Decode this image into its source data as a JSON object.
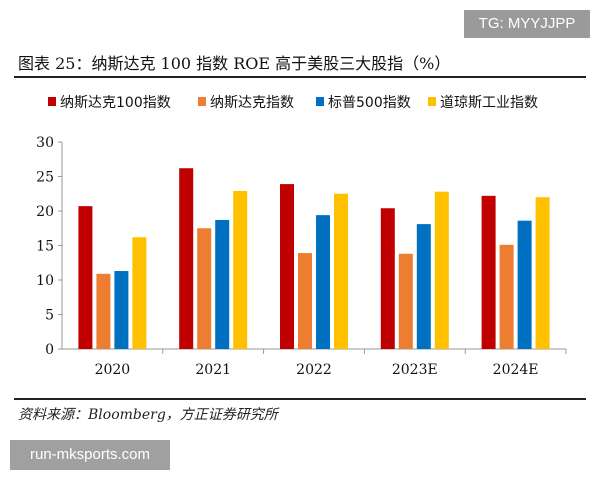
{
  "watermark_top": "TG: MYYJJPP",
  "watermark_bottom": "run-mksports.com",
  "source": "资料来源：Bloomberg，方正证券研究所",
  "chart_data": {
    "type": "bar",
    "title": "图表 25：纳斯达克 100 指数 ROE 高于美股三大股指（%）",
    "categories": [
      "2020",
      "2021",
      "2022",
      "2023E",
      "2024E"
    ],
    "series": [
      {
        "name": "纳斯达克100指数",
        "color": "#C00000",
        "values": [
          20.7,
          26.2,
          23.9,
          20.4,
          22.2
        ]
      },
      {
        "name": "纳斯达克指数",
        "color": "#ED7D31",
        "values": [
          10.9,
          17.5,
          13.9,
          13.8,
          15.1
        ]
      },
      {
        "name": "标普500指数",
        "color": "#0070C0",
        "values": [
          11.3,
          18.7,
          19.4,
          18.1,
          18.6
        ]
      },
      {
        "name": "道琼斯工业指数",
        "color": "#FFC000",
        "values": [
          16.2,
          22.9,
          22.5,
          22.8,
          22.0
        ]
      }
    ],
    "ylim": [
      0,
      30
    ],
    "yticks": [
      0,
      5,
      10,
      15,
      20,
      25,
      30
    ],
    "legend": "top",
    "grid": false
  }
}
